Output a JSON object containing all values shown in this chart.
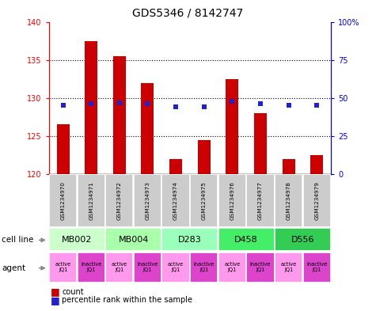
{
  "title": "GDS5346 / 8142747",
  "samples": [
    "GSM1234970",
    "GSM1234971",
    "GSM1234972",
    "GSM1234973",
    "GSM1234974",
    "GSM1234975",
    "GSM1234976",
    "GSM1234977",
    "GSM1234978",
    "GSM1234979"
  ],
  "bar_values": [
    126.5,
    137.5,
    135.5,
    132.0,
    122.0,
    124.5,
    132.5,
    128.0,
    122.0,
    122.5
  ],
  "blue_values": [
    45,
    46,
    47,
    46,
    44,
    44,
    48,
    46,
    45,
    45
  ],
  "ylim_left": [
    120,
    140
  ],
  "ylim_right": [
    0,
    100
  ],
  "yticks_left": [
    120,
    125,
    130,
    135,
    140
  ],
  "yticks_right": [
    0,
    25,
    50,
    75,
    100
  ],
  "ytick_labels_left": [
    "120",
    "125",
    "130",
    "135",
    "140"
  ],
  "ytick_labels_right": [
    "0",
    "25",
    "50",
    "75",
    "100%"
  ],
  "cell_line_data": [
    {
      "label": "MB002",
      "c1": 0,
      "c2": 1,
      "color": "#ccffcc"
    },
    {
      "label": "MB004",
      "c1": 2,
      "c2": 3,
      "color": "#aaffaa"
    },
    {
      "label": "D283",
      "c1": 4,
      "c2": 5,
      "color": "#99ffbb"
    },
    {
      "label": "D458",
      "c1": 6,
      "c2": 7,
      "color": "#44ee66"
    },
    {
      "label": "D556",
      "c1": 8,
      "c2": 9,
      "color": "#33cc55"
    }
  ],
  "agent_colors": [
    "#ff99ee",
    "#dd44cc"
  ],
  "bar_color": "#cc0000",
  "blue_color": "#2222cc",
  "sample_box_color": "#cccccc",
  "bar_width": 0.45
}
